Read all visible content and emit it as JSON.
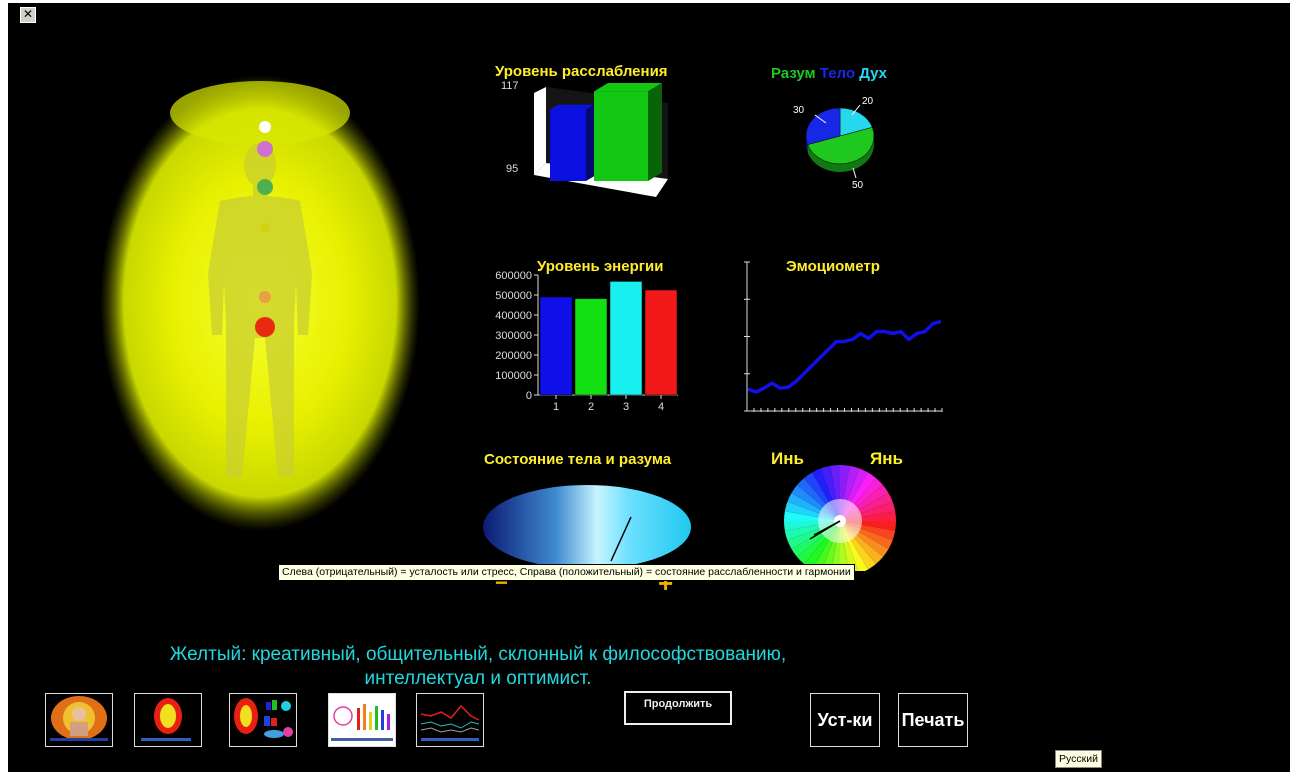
{
  "window": {
    "close_glyph": "✕"
  },
  "relax": {
    "title": "Уровень расслабления",
    "y_top": "117",
    "y_bottom": "95",
    "chart_data": {
      "type": "bar",
      "title": "Уровень расслабления",
      "categories": [
        "",
        ""
      ],
      "values": [
        113,
        118
      ],
      "colors": [
        "#0a10e0",
        "#12c812"
      ],
      "ylim": [
        95,
        117
      ],
      "tick_labels": [
        "117",
        "95"
      ]
    }
  },
  "mind_body": {
    "legend": [
      {
        "label": "Разум",
        "color": "#1ec81e"
      },
      {
        "label": "Тело",
        "color": "#1628e6"
      },
      {
        "label": "Дух",
        "color": "#26d8ee"
      }
    ],
    "labels": [
      "30",
      "20",
      "50"
    ],
    "chart_data": {
      "type": "pie",
      "categories": [
        "Разум",
        "Тело",
        "Дух"
      ],
      "values": [
        50,
        30,
        20
      ],
      "colors": [
        "#1ec81e",
        "#1628e6",
        "#26d8ee"
      ]
    }
  },
  "energy": {
    "title": "Уровень энергии",
    "chart_data": {
      "type": "bar",
      "title": "Уровень энергии",
      "categories": [
        "1",
        "2",
        "3",
        "4"
      ],
      "values": [
        490000,
        482000,
        568000,
        525000
      ],
      "colors": [
        "#1010e8",
        "#12e012",
        "#18f0f0",
        "#f01818"
      ],
      "ylim": [
        0,
        600000
      ],
      "yticks": [
        "600000",
        "500000",
        "400000",
        "300000",
        "200000",
        "100000",
        "0"
      ]
    }
  },
  "emotio": {
    "title": "Эмоциометр",
    "chart_data": {
      "type": "line",
      "title": "Эмоциометр",
      "series_color": "#1010e8",
      "values": [
        22,
        19,
        23,
        28,
        23,
        24,
        30,
        38,
        46,
        54,
        62,
        70,
        70,
        72,
        78,
        73,
        80,
        80,
        78,
        80,
        72,
        78,
        80,
        88,
        90
      ],
      "ylim": [
        0,
        150
      ]
    }
  },
  "state": {
    "title": "Состояние тела и разума",
    "minus": "−",
    "plus": "+",
    "gauge_value": 0.62
  },
  "yinyang": {
    "yin": "Инь",
    "yang": "Янь"
  },
  "tooltip": "Слева (отрицательный) = усталость или стресс, Справа (положительный) = состояние расслабленности и гармонии",
  "description": {
    "line1": "Желтый: креативный, общительный, склонный к философствованию,",
    "line2": "интеллектуал и оптимист."
  },
  "buttons": {
    "continue": "Продолжить",
    "settings": "Уст-ки",
    "print": "Печать",
    "language": "Русский"
  },
  "thumbnails": [
    {
      "name": "thumb-portrait"
    },
    {
      "name": "thumb-aura"
    },
    {
      "name": "thumb-aura-charts"
    },
    {
      "name": "thumb-chakra-bars"
    },
    {
      "name": "thumb-graph"
    }
  ],
  "colors": {
    "aura": "#e8f000",
    "title_yellow": "#ffee2a",
    "desc_cyan": "#20d8e0"
  }
}
